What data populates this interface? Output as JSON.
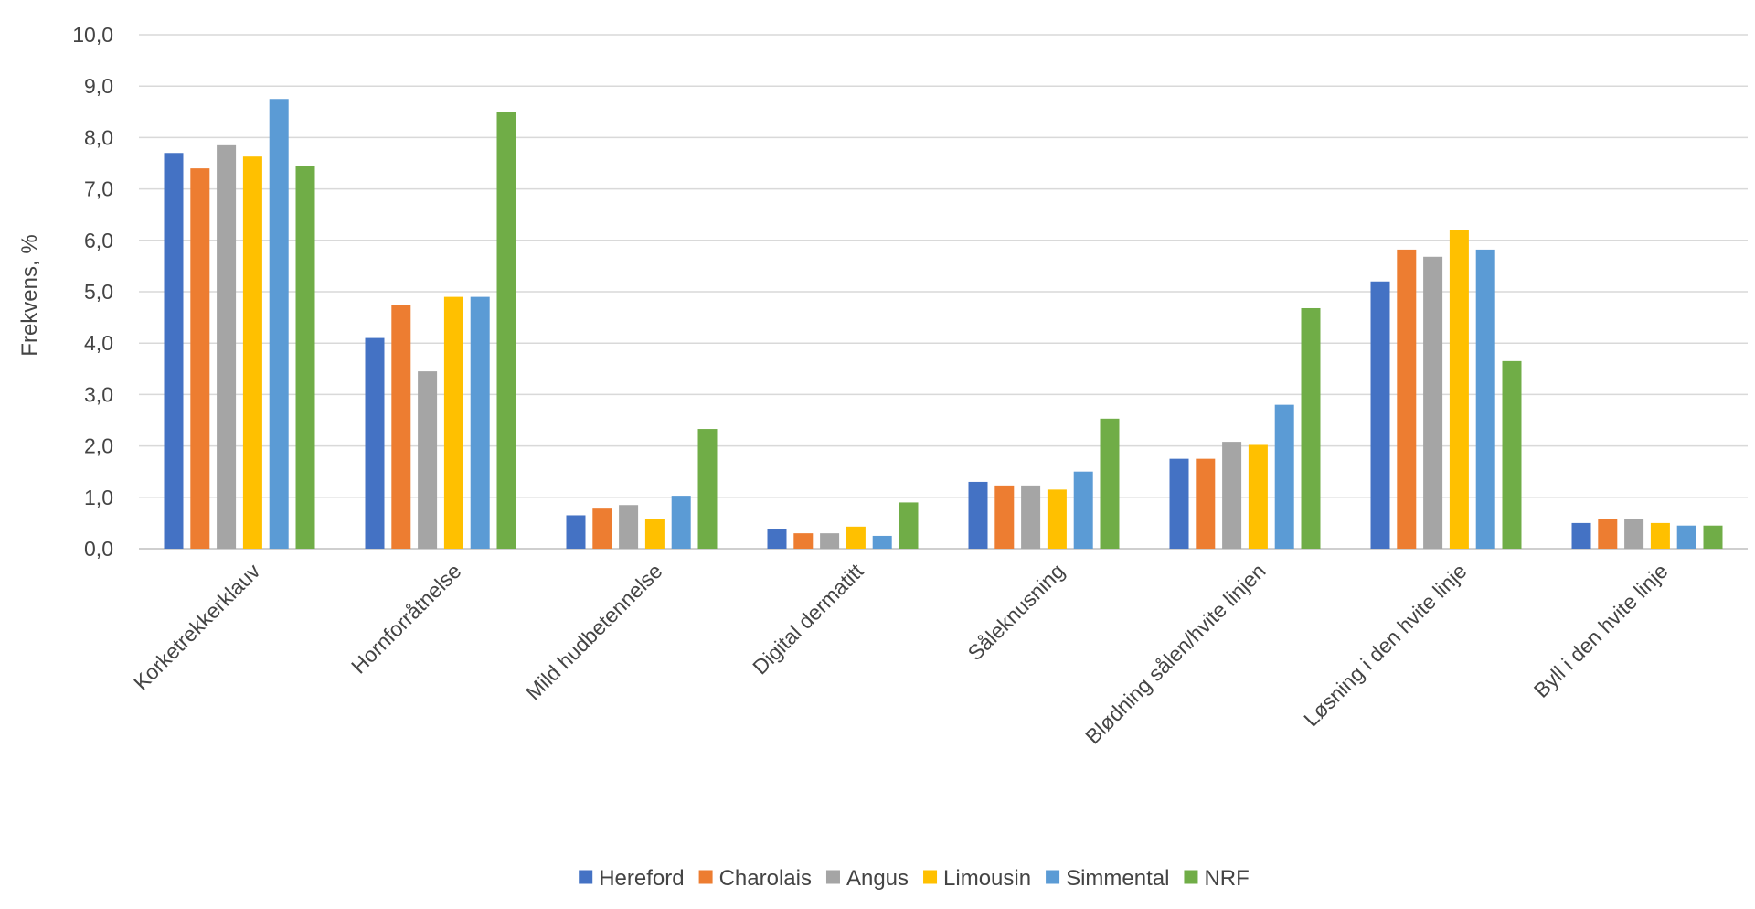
{
  "chart_data": {
    "type": "bar",
    "title": "",
    "xlabel": "",
    "ylabel": "Frekvens, %",
    "ylim": [
      0,
      10
    ],
    "yticks": [
      "0,0",
      "1,0",
      "2,0",
      "3,0",
      "4,0",
      "5,0",
      "6,0",
      "7,0",
      "8,0",
      "9,0",
      "10,0"
    ],
    "grid": true,
    "legend_position": "bottom",
    "categories": [
      "Korketrekkerklauv",
      "Hornforråtnelse",
      "Mild hudbetennelse",
      "Digital dermatitt",
      "Såleknusning",
      "Blødning sålen/hvite linjen",
      "Løsning i den hvite linje",
      "Byll i den hvite linje"
    ],
    "series": [
      {
        "name": "Hereford",
        "color": "#4472c4",
        "values": [
          7.7,
          4.1,
          0.65,
          0.38,
          1.3,
          1.75,
          5.2,
          0.5
        ]
      },
      {
        "name": "Charolais",
        "color": "#ed7d31",
        "values": [
          7.4,
          4.75,
          0.78,
          0.3,
          1.23,
          1.75,
          5.82,
          0.57
        ]
      },
      {
        "name": "Angus",
        "color": "#a5a5a5",
        "values": [
          7.85,
          3.45,
          0.85,
          0.3,
          1.23,
          2.08,
          5.68,
          0.57
        ]
      },
      {
        "name": "Limousin",
        "color": "#ffc000",
        "values": [
          7.63,
          4.9,
          0.57,
          0.43,
          1.15,
          2.02,
          6.2,
          0.5
        ]
      },
      {
        "name": "Simmental",
        "color": "#5b9bd5",
        "values": [
          8.75,
          4.9,
          1.03,
          0.25,
          1.5,
          2.8,
          5.82,
          0.45
        ]
      },
      {
        "name": "NRF",
        "color": "#70ad47",
        "values": [
          7.45,
          8.5,
          2.33,
          0.9,
          2.53,
          4.68,
          3.65,
          0.45
        ]
      }
    ]
  }
}
